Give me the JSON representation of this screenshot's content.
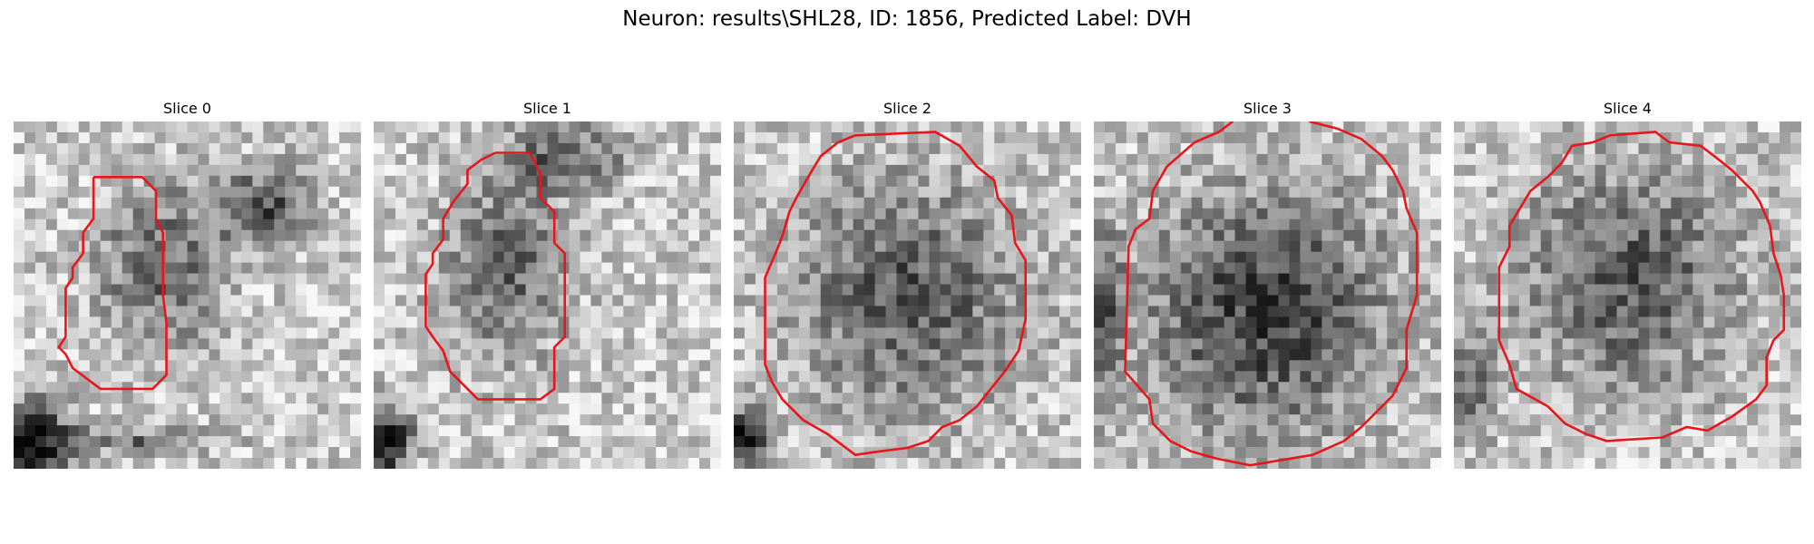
{
  "figure": {
    "title": "Neuron: results\\SHL28, ID: 1856, Predicted Label: DVH"
  },
  "panels": [
    {
      "title": "Slice 0"
    },
    {
      "title": "Slice 1"
    },
    {
      "title": "Slice 2"
    },
    {
      "title": "Slice 3"
    },
    {
      "title": "Slice 4"
    }
  ],
  "colors": {
    "contour": "#e8161b",
    "background": "#ffffff"
  }
}
